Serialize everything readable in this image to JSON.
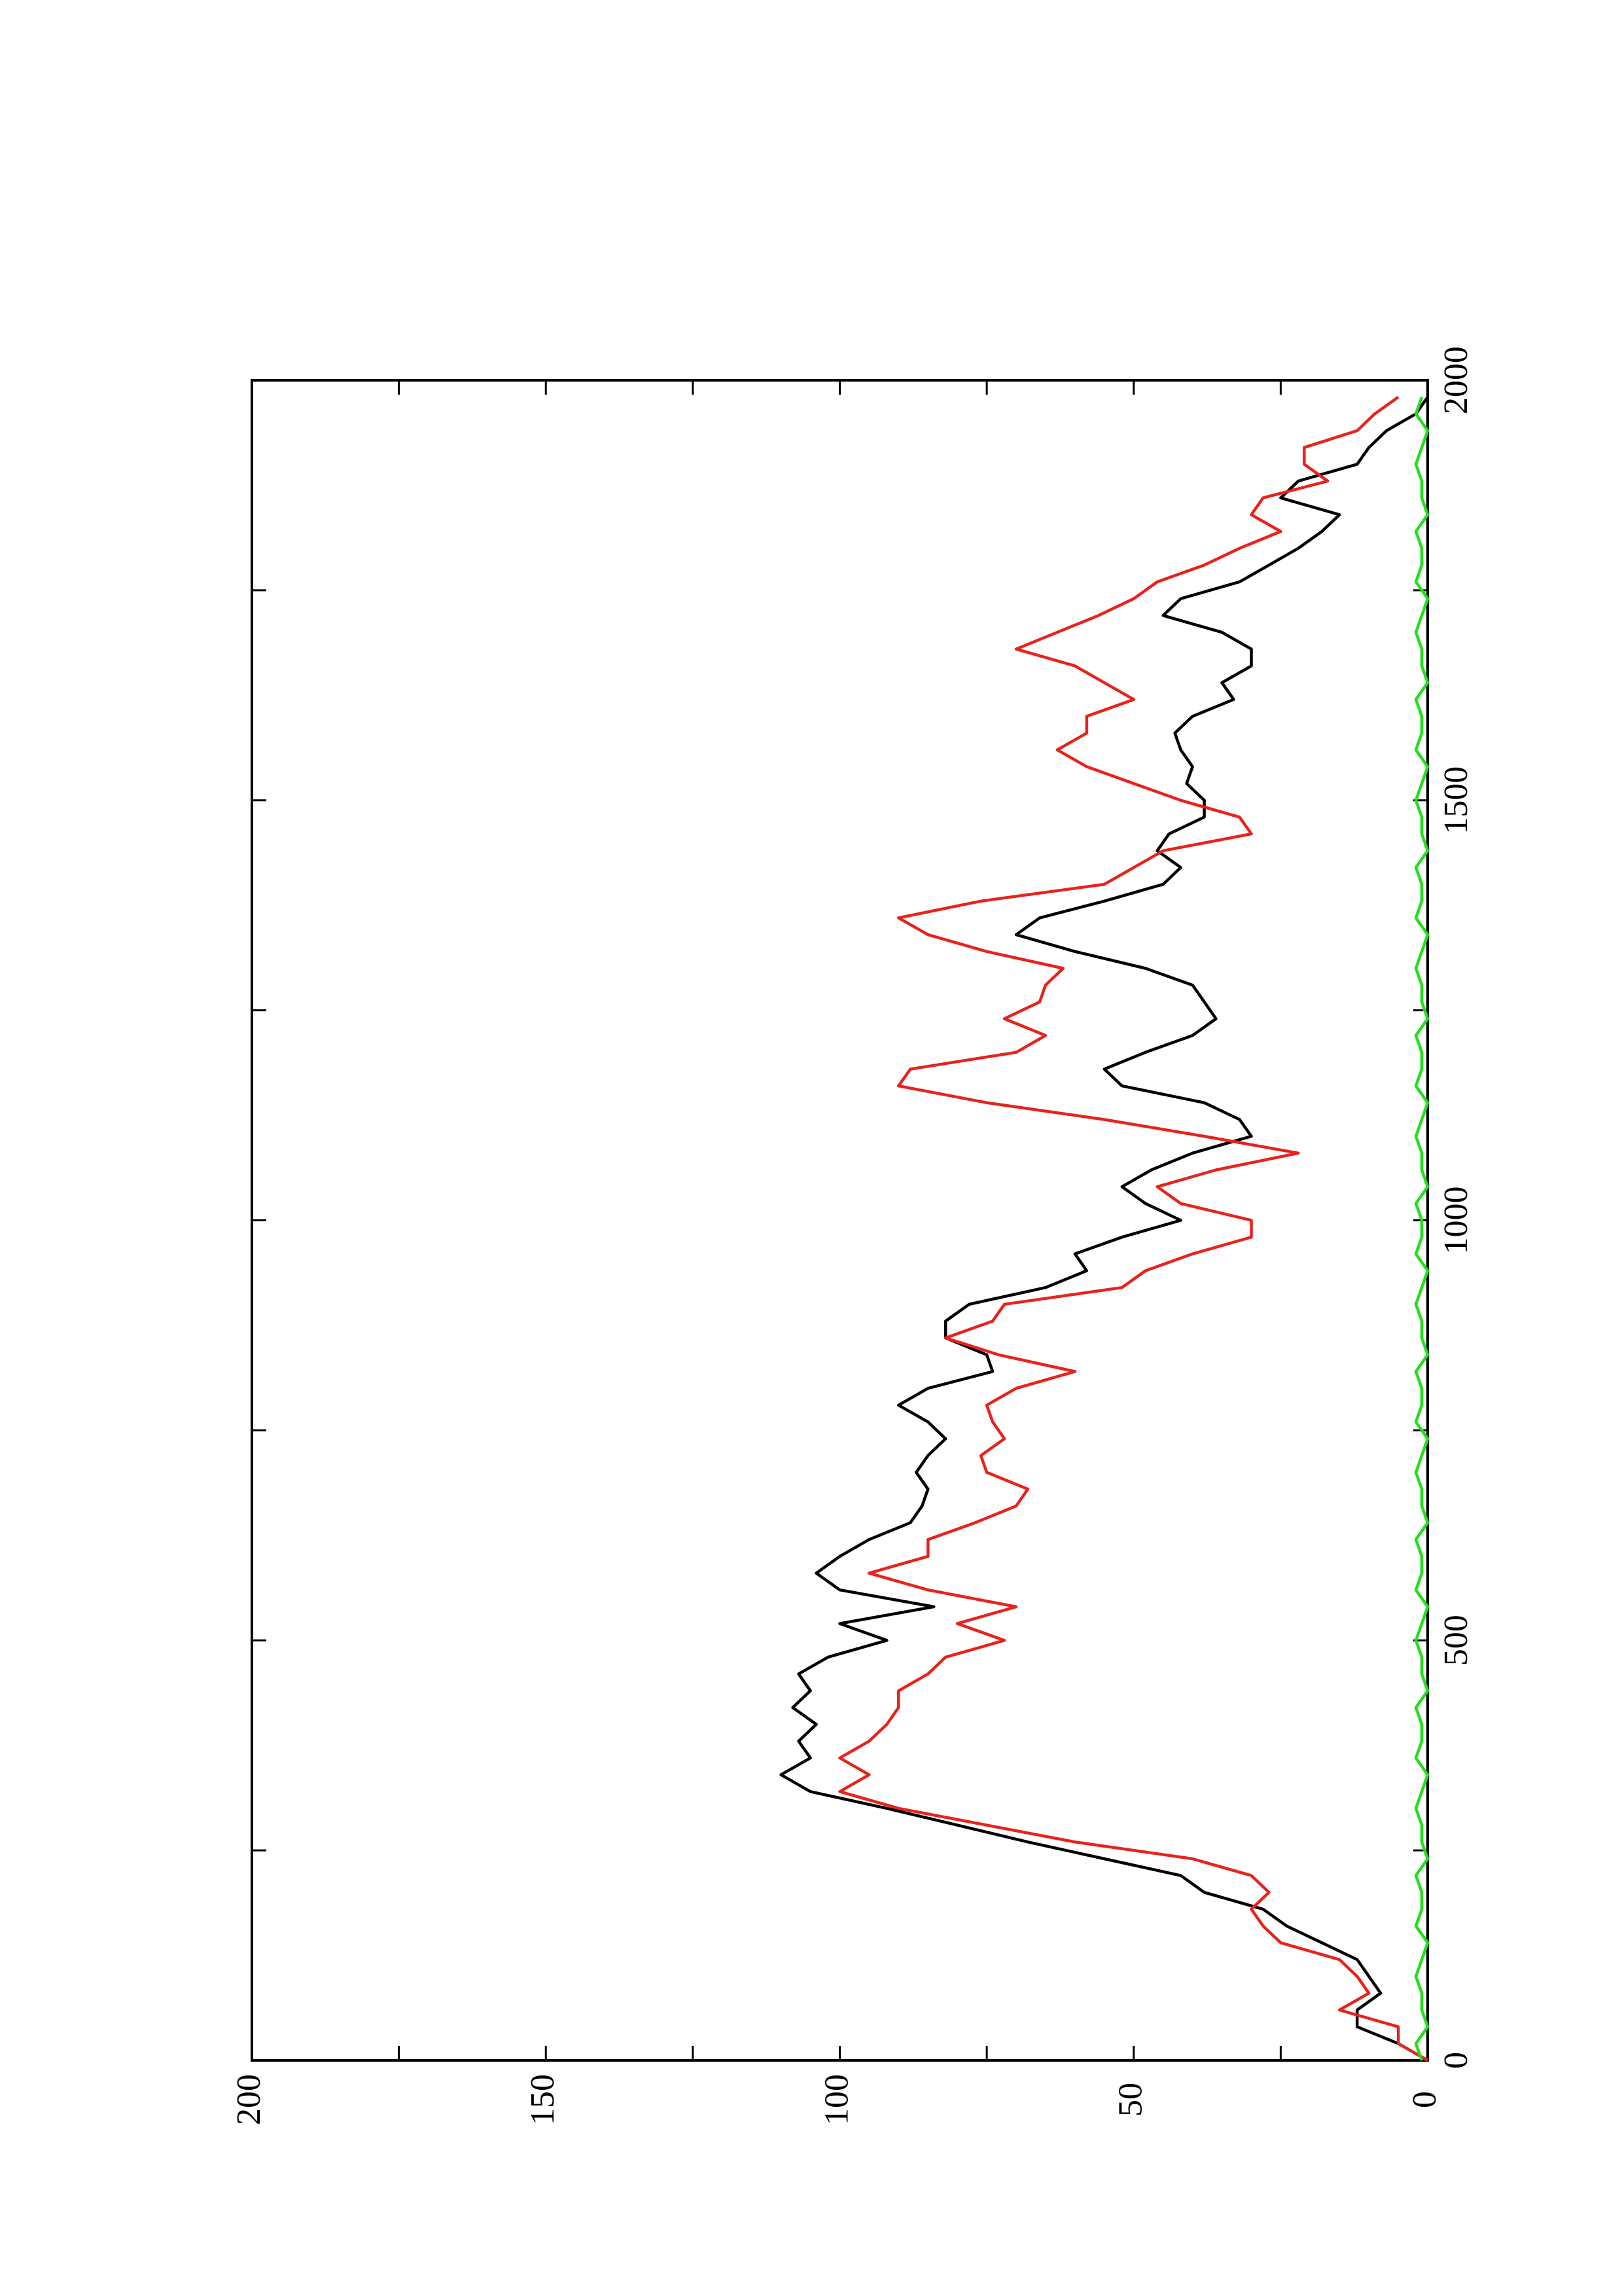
{
  "chart_data": {
    "type": "line",
    "x": [
      0,
      20,
      40,
      60,
      80,
      100,
      120,
      140,
      160,
      180,
      200,
      220,
      240,
      260,
      280,
      300,
      320,
      340,
      360,
      380,
      400,
      420,
      440,
      460,
      480,
      500,
      520,
      540,
      560,
      580,
      600,
      620,
      640,
      660,
      680,
      700,
      720,
      740,
      760,
      780,
      800,
      820,
      840,
      860,
      880,
      900,
      920,
      940,
      960,
      980,
      1000,
      1020,
      1040,
      1060,
      1080,
      1100,
      1120,
      1140,
      1160,
      1180,
      1200,
      1220,
      1240,
      1260,
      1280,
      1300,
      1320,
      1340,
      1360,
      1380,
      1400,
      1420,
      1440,
      1460,
      1480,
      1500,
      1520,
      1540,
      1560,
      1580,
      1600,
      1620,
      1640,
      1660,
      1680,
      1700,
      1720,
      1740,
      1760,
      1780,
      1800,
      1820,
      1840,
      1860,
      1880,
      1900,
      1920,
      1940,
      1960,
      1980
    ],
    "series": [
      {
        "color": "#000000",
        "values": [
          0,
          5,
          12,
          12,
          8,
          10,
          12,
          18,
          24,
          28,
          38,
          42,
          55,
          68,
          80,
          92,
          105,
          110,
          105,
          107,
          104,
          108,
          105,
          107,
          102,
          92,
          100,
          84,
          100,
          104,
          100,
          95,
          88,
          86,
          85,
          87,
          85,
          82,
          85,
          90,
          85,
          74,
          75,
          82,
          82,
          78,
          65,
          58,
          60,
          52,
          42,
          48,
          52,
          47,
          40,
          30,
          32,
          38,
          52,
          55,
          48,
          40,
          36,
          38,
          40,
          48,
          60,
          70,
          66,
          55,
          45,
          42,
          46,
          44,
          38,
          38,
          41,
          40,
          42,
          43,
          40,
          33,
          35,
          30,
          30,
          35,
          45,
          42,
          32,
          27,
          22,
          18,
          15,
          25,
          22,
          12,
          10,
          7,
          2,
          0
        ]
      },
      {
        "color": "#e8221c",
        "values": [
          0,
          5,
          5,
          15,
          10,
          12,
          15,
          25,
          28,
          30,
          27,
          30,
          40,
          60,
          75,
          90,
          100,
          95,
          100,
          95,
          92,
          90,
          90,
          85,
          82,
          72,
          80,
          70,
          85,
          95,
          85,
          85,
          77,
          70,
          68,
          75,
          76,
          72,
          74,
          75,
          70,
          60,
          73,
          82,
          74,
          72,
          52,
          48,
          40,
          30,
          30,
          42,
          46,
          36,
          22,
          38,
          55,
          75,
          90,
          88,
          70,
          65,
          72,
          66,
          65,
          62,
          75,
          85,
          90,
          76,
          55,
          50,
          45,
          30,
          32,
          42,
          50,
          58,
          63,
          58,
          58,
          50,
          55,
          60,
          70,
          63,
          56,
          50,
          46,
          38,
          32,
          25,
          30,
          28,
          17,
          21,
          21,
          12,
          9,
          5
        ]
      },
      {
        "color": "#22e01a",
        "values": [
          1,
          2,
          0,
          1,
          1,
          2,
          1,
          0,
          2,
          1,
          1,
          2,
          0,
          1,
          1,
          2,
          1,
          0,
          2,
          1,
          1,
          2,
          0,
          1,
          1,
          2,
          1,
          0,
          2,
          1,
          1,
          2,
          0,
          1,
          1,
          2,
          1,
          0,
          2,
          1,
          1,
          2,
          0,
          1,
          1,
          2,
          1,
          0,
          2,
          1,
          1,
          2,
          0,
          1,
          1,
          2,
          1,
          0,
          2,
          1,
          1,
          2,
          0,
          1,
          1,
          2,
          1,
          0,
          2,
          1,
          1,
          2,
          0,
          1,
          1,
          2,
          1,
          0,
          2,
          1,
          1,
          2,
          0,
          1,
          1,
          2,
          1,
          0,
          2,
          1,
          1,
          2,
          0,
          1,
          1,
          2,
          1,
          0,
          2,
          1
        ]
      }
    ],
    "xlim": [
      0,
      2000
    ],
    "xticks": [
      0,
      500,
      1000,
      1500,
      2000
    ],
    "xminorticks": [
      250,
      750,
      1250,
      1750
    ],
    "ylim": [
      0,
      200
    ],
    "yticks": [
      0,
      50,
      100,
      150,
      200
    ],
    "yminorticks": [
      25,
      75,
      125,
      175
    ]
  }
}
